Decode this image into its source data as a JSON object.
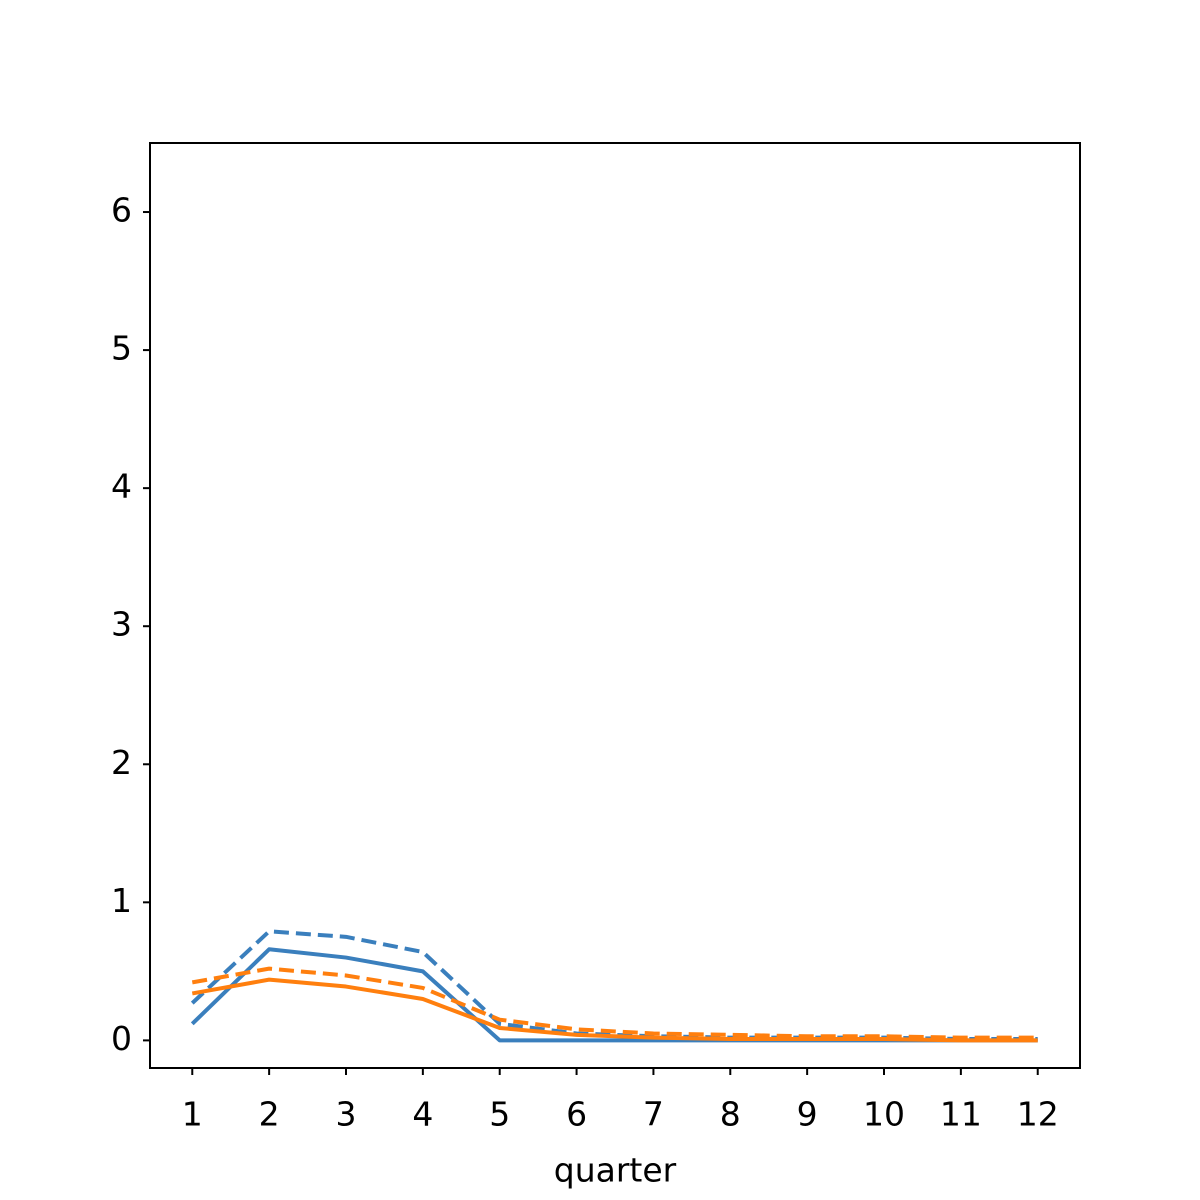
{
  "chart_data": {
    "type": "line",
    "xlabel": "quarter",
    "x": [
      1,
      2,
      3,
      4,
      5,
      6,
      7,
      8,
      9,
      10,
      11,
      12
    ],
    "series": [
      {
        "color": "#3a7fbd",
        "linestyle": "solid",
        "values": [
          0.12,
          0.66,
          0.6,
          0.5,
          0.0,
          0.0,
          0.0,
          0.0,
          0.0,
          0.0,
          0.0,
          0.0
        ]
      },
      {
        "color": "#3a7fbd",
        "linestyle": "dashed",
        "values": [
          0.27,
          0.79,
          0.75,
          0.64,
          0.12,
          0.05,
          0.03,
          0.02,
          0.02,
          0.02,
          0.01,
          0.01
        ]
      },
      {
        "color": "#ff7f0e",
        "linestyle": "solid",
        "values": [
          0.34,
          0.44,
          0.39,
          0.3,
          0.09,
          0.04,
          0.02,
          0.01,
          0.01,
          0.01,
          0.0,
          0.0
        ]
      },
      {
        "color": "#ff7f0e",
        "linestyle": "dashed",
        "values": [
          0.42,
          0.52,
          0.47,
          0.38,
          0.15,
          0.08,
          0.05,
          0.04,
          0.03,
          0.03,
          0.02,
          0.02
        ]
      }
    ],
    "xlim": [
      0.45,
      12.55
    ],
    "xticks": [
      1,
      2,
      3,
      4,
      5,
      6,
      7,
      8,
      9,
      10,
      11,
      12
    ],
    "ylim": [
      -0.2,
      6.5
    ],
    "yticks": [
      0,
      1,
      2,
      3,
      4,
      5,
      6
    ],
    "grid": false
  }
}
